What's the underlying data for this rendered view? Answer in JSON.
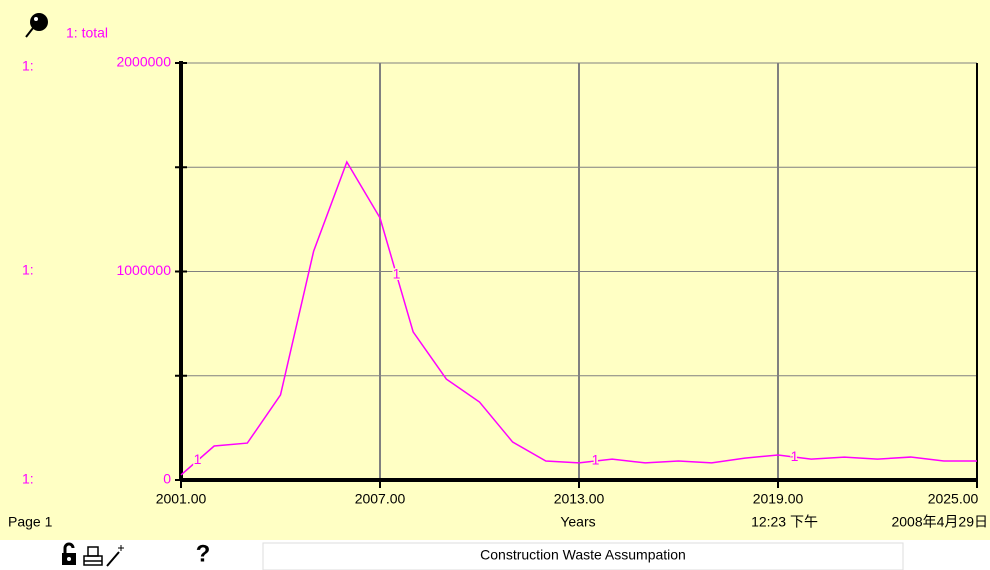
{
  "chart_data": {
    "type": "line",
    "legend": "1: total",
    "axis_prefix": "1:",
    "line_label": "1",
    "x_label": "Years",
    "page_label": "Page 1",
    "time": "12:23 下午",
    "date": "2008年4月29日",
    "title": "Construction Waste Assumpation",
    "x": [
      2001,
      2002,
      2003,
      2004,
      2005,
      2006,
      2007,
      2008,
      2009,
      2010,
      2011,
      2012,
      2013,
      2014,
      2015,
      2016,
      2017,
      2018,
      2019,
      2020,
      2021,
      2022,
      2023,
      2024,
      2025
    ],
    "series": [
      {
        "name": "total",
        "color": "#ff00ff",
        "values": [
          24000,
          163000,
          177000,
          408000,
          1098000,
          1525000,
          1257000,
          710000,
          484000,
          374000,
          182000,
          91000,
          82000,
          100000,
          82000,
          91000,
          82000,
          105000,
          120000,
          100000,
          110000,
          100000,
          110000,
          91000,
          91000
        ]
      }
    ],
    "xlim": [
      2001,
      2025
    ],
    "xticks": [
      {
        "value": 2001,
        "label": "2001.00"
      },
      {
        "value": 2007,
        "label": "2007.00"
      },
      {
        "value": 2013,
        "label": "2013.00"
      },
      {
        "value": 2019,
        "label": "2019.00"
      },
      {
        "value": 2025,
        "label": "2025.00"
      }
    ],
    "ylim": [
      0,
      2000000
    ],
    "yticks": [
      0,
      1000000,
      2000000
    ],
    "minor_yticks": [
      500000,
      1500000
    ],
    "grid": true
  }
}
